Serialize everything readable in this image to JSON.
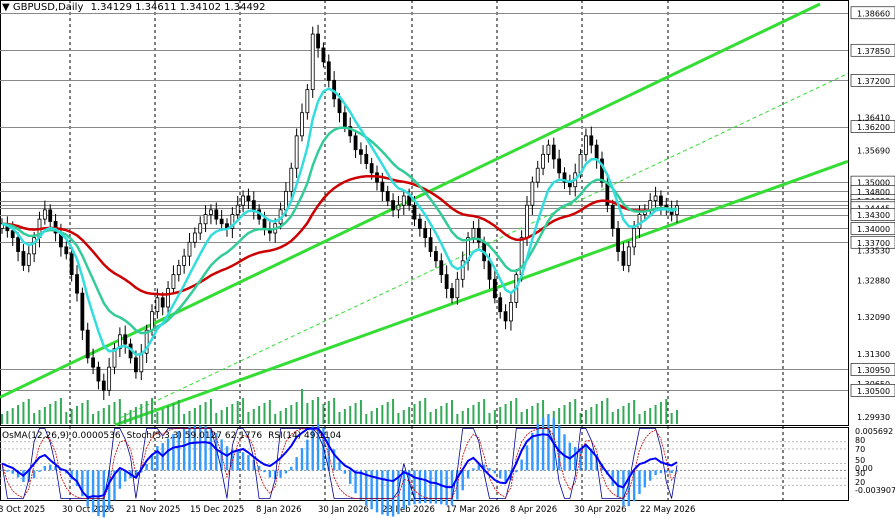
{
  "header": {
    "symbol": "GBPUSD,Daily",
    "ohlc": "1.34129 1.34611 1.34102 1.34492"
  },
  "indicators": {
    "osma": "OsMA(12,26,9) 0.0000536",
    "stoch": "Stoch(5,3,3) 59.0127 62.1776",
    "rsi": "RSI(14) 49.1104"
  },
  "colors": {
    "up_candle": "#000000",
    "down_candle": "#000000",
    "ema_long": "#cc0000",
    "ema_mid": "#33cc99",
    "ema_fast": "#33dddd",
    "channel": "#33dd33",
    "grid": "#000000",
    "volume": "#33aa55",
    "osma": "#3399ff",
    "stoch_main": "#000099",
    "stoch_signal": "#cc0000",
    "rsi": "#0000ff"
  },
  "chart_data": {
    "type": "candlestick",
    "price_axis_labels": [
      "1.38660",
      "1.37850",
      "1.37200",
      "1.36410",
      "1.36200",
      "1.35690",
      "1.35000",
      "1.34800",
      "1.34600",
      "1.34500",
      "1.34445",
      "1.34300",
      "1.34000",
      "1.33700",
      "1.33530",
      "1.32880",
      "1.32090",
      "1.31300",
      "1.30950",
      "1.30650",
      "1.30500",
      "1.29930"
    ],
    "highlighted_levels": [
      "1.38660",
      "1.37850",
      "1.37200",
      "1.36200",
      "1.35000",
      "1.34800",
      "1.34600",
      "1.34500",
      "1.34445",
      "1.34300",
      "1.34000",
      "1.33700",
      "1.30950",
      "1.30500"
    ],
    "y_range": [
      1.2975,
      1.3885
    ],
    "x_labels": [
      "8 Oct 2025",
      "30 Oct 2025",
      "21 Nov 2025",
      "15 Dec 2025",
      "8 Jan 2026",
      "30 Jan 2026",
      "23 Feb 2026",
      "17 Mar 2026",
      "8 Apr 2026",
      "30 Apr 2026",
      "22 May 2026"
    ],
    "indicator_axis_labels": [
      "0.005692",
      "80",
      "70",
      "50",
      "30",
      "20",
      "0.00",
      "-0.003907"
    ],
    "closes": [
      1.341,
      1.3395,
      1.338,
      1.335,
      1.332,
      1.3345,
      1.338,
      1.342,
      1.344,
      1.3415,
      1.339,
      1.336,
      1.3345,
      1.33,
      1.326,
      1.318,
      1.312,
      1.31,
      1.307,
      1.305,
      1.31,
      1.314,
      1.317,
      1.315,
      1.312,
      1.309,
      1.313,
      1.318,
      1.322,
      1.325,
      1.323,
      1.327,
      1.33,
      1.332,
      1.334,
      1.337,
      1.339,
      1.341,
      1.343,
      1.344,
      1.342,
      1.341,
      1.34,
      1.343,
      1.345,
      1.347,
      1.346,
      1.344,
      1.342,
      1.34,
      1.339,
      1.341,
      1.344,
      1.348,
      1.353,
      1.36,
      1.365,
      1.37,
      1.382,
      1.379,
      1.376,
      1.372,
      1.368,
      1.365,
      1.362,
      1.36,
      1.357,
      1.356,
      1.354,
      1.352,
      1.35,
      1.348,
      1.346,
      1.344,
      1.345,
      1.347,
      1.345,
      1.342,
      1.34,
      1.338,
      1.335,
      1.333,
      1.33,
      1.327,
      1.325,
      1.329,
      1.333,
      1.338,
      1.34,
      1.337,
      1.333,
      1.329,
      1.325,
      1.322,
      1.32,
      1.324,
      1.33,
      1.338,
      1.345,
      1.35,
      1.353,
      1.356,
      1.358,
      1.355,
      1.352,
      1.35,
      1.349,
      1.352,
      1.356,
      1.36,
      1.358,
      1.355,
      1.35,
      1.345,
      1.34,
      1.335,
      1.332,
      1.336,
      1.34,
      1.343,
      1.344,
      1.346,
      1.347,
      1.345,
      1.344,
      1.343,
      1.3449
    ]
  }
}
